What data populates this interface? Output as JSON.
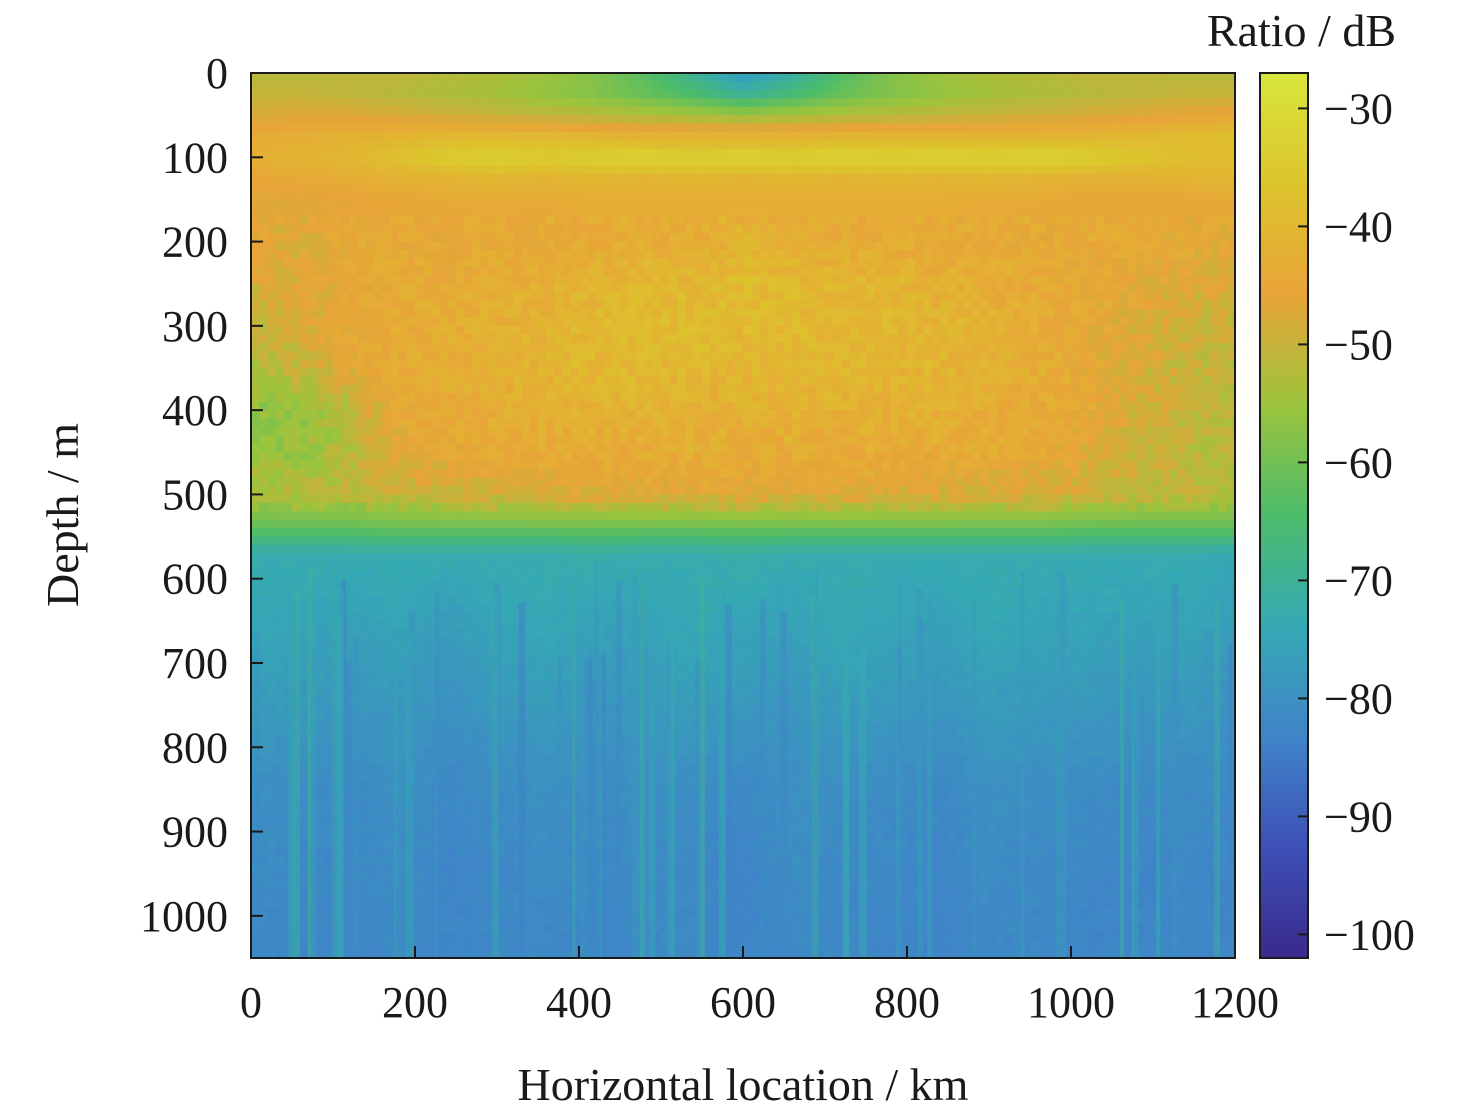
{
  "chart_data": {
    "type": "heatmap",
    "xlabel": "Horizontal location / km",
    "ylabel": "Depth / m",
    "colorbar_label": "Ratio / dB",
    "xlim": [
      0,
      1200
    ],
    "ylim": [
      0,
      1050
    ],
    "y_inverted": true,
    "x_ticks": [
      0,
      200,
      400,
      600,
      800,
      1000,
      1200
    ],
    "y_ticks": [
      0,
      100,
      200,
      300,
      400,
      500,
      600,
      700,
      800,
      900,
      1000
    ],
    "colorbar_range": [
      -102,
      -27
    ],
    "colorbar_ticks": [
      -30,
      -40,
      -50,
      -60,
      -70,
      -80,
      -90,
      -100
    ],
    "colormap": [
      "#3a2a8c",
      "#3d50b6",
      "#3f84c8",
      "#35a9b4",
      "#4cbc6a",
      "#9cc43c",
      "#e8a438",
      "#dcc42c",
      "#d8e63c"
    ],
    "x": [
      0,
      60,
      120,
      180,
      240,
      300,
      360,
      420,
      480,
      540,
      600,
      660,
      720,
      780,
      840,
      900,
      960,
      1020,
      1080,
      1140,
      1200
    ],
    "y": [
      0,
      25,
      50,
      75,
      100,
      125,
      150,
      200,
      250,
      300,
      350,
      400,
      450,
      500,
      540,
      570,
      650,
      750,
      850,
      950,
      1050
    ],
    "z": [
      [
        -52,
        -52,
        -51,
        -51,
        -52,
        -53,
        -55,
        -58,
        -63,
        -70,
        -78,
        -72,
        -64,
        -58,
        -55,
        -53,
        -52,
        -51,
        -51,
        -52,
        -52
      ],
      [
        -50,
        -50,
        -51,
        -52,
        -53,
        -54,
        -56,
        -58,
        -61,
        -65,
        -70,
        -66,
        -61,
        -58,
        -56,
        -54,
        -53,
        -52,
        -51,
        -50,
        -50
      ],
      [
        -48,
        -47,
        -47,
        -48,
        -49,
        -50,
        -51,
        -52,
        -53,
        -54,
        -55,
        -54,
        -53,
        -52,
        -51,
        -50,
        -49,
        -48,
        -47,
        -46,
        -45
      ],
      [
        -44,
        -43,
        -42,
        -41,
        -40,
        -40,
        -40,
        -41,
        -42,
        -42,
        -42,
        -42,
        -41,
        -41,
        -41,
        -41,
        -41,
        -41,
        -40,
        -39,
        -38
      ],
      [
        -42,
        -41,
        -40,
        -37,
        -34,
        -33,
        -34,
        -33,
        -32,
        -33,
        -32,
        -33,
        -32,
        -33,
        -32,
        -33,
        -32,
        -33,
        -36,
        -38,
        -39
      ],
      [
        -45,
        -44,
        -43,
        -42,
        -41,
        -40,
        -41,
        -40,
        -41,
        -40,
        -41,
        -40,
        -41,
        -40,
        -41,
        -40,
        -41,
        -42,
        -42,
        -41,
        -40
      ],
      [
        -47,
        -47,
        -46,
        -45,
        -44,
        -44,
        -44,
        -43,
        -43,
        -43,
        -43,
        -43,
        -43,
        -43,
        -43,
        -44,
        -44,
        -45,
        -45,
        -45,
        -44
      ],
      [
        -46,
        -47,
        -45,
        -44,
        -45,
        -44,
        -45,
        -44,
        -43,
        -44,
        -41,
        -43,
        -44,
        -44,
        -45,
        -44,
        -45,
        -44,
        -45,
        -45,
        -46
      ],
      [
        -48,
        -47,
        -45,
        -44,
        -44,
        -43,
        -42,
        -41,
        -40,
        -40,
        -39,
        -40,
        -40,
        -41,
        -42,
        -43,
        -44,
        -45,
        -46,
        -47,
        -48
      ],
      [
        -50,
        -48,
        -45,
        -44,
        -43,
        -42,
        -41,
        -40,
        -39,
        -39,
        -39,
        -40,
        -40,
        -40,
        -41,
        -42,
        -43,
        -45,
        -47,
        -49,
        -50
      ],
      [
        -53,
        -50,
        -46,
        -44,
        -43,
        -42,
        -41,
        -40,
        -40,
        -40,
        -41,
        -41,
        -40,
        -41,
        -41,
        -42,
        -43,
        -45,
        -48,
        -50,
        -51
      ],
      [
        -57,
        -56,
        -52,
        -45,
        -44,
        -43,
        -42,
        -42,
        -41,
        -42,
        -42,
        -42,
        -42,
        -42,
        -42,
        -43,
        -44,
        -45,
        -48,
        -50,
        -52
      ],
      [
        -56,
        -56,
        -52,
        -46,
        -45,
        -44,
        -44,
        -43,
        -44,
        -43,
        -44,
        -43,
        -44,
        -43,
        -44,
        -44,
        -45,
        -47,
        -49,
        -51,
        -52
      ],
      [
        -53,
        -52,
        -51,
        -50,
        -49,
        -48,
        -47,
        -47,
        -46,
        -47,
        -46,
        -47,
        -46,
        -47,
        -47,
        -48,
        -48,
        -49,
        -50,
        -51,
        -52
      ],
      [
        -62,
        -62,
        -62,
        -61,
        -61,
        -61,
        -61,
        -61,
        -61,
        -61,
        -61,
        -61,
        -61,
        -61,
        -61,
        -61,
        -61,
        -62,
        -62,
        -62,
        -62
      ],
      [
        -73,
        -73,
        -73,
        -73,
        -73,
        -73,
        -73,
        -72,
        -73,
        -73,
        -72,
        -73,
        -73,
        -73,
        -73,
        -73,
        -73,
        -73,
        -73,
        -73,
        -74
      ],
      [
        -74,
        -75,
        -76,
        -75,
        -77,
        -75,
        -74,
        -76,
        -75,
        -74,
        -75,
        -76,
        -74,
        -75,
        -76,
        -74,
        -75,
        -75,
        -76,
        -75,
        -77
      ],
      [
        -77,
        -78,
        -79,
        -78,
        -80,
        -78,
        -77,
        -79,
        -78,
        -77,
        -78,
        -79,
        -77,
        -78,
        -79,
        -77,
        -78,
        -78,
        -79,
        -78,
        -80
      ],
      [
        -80,
        -81,
        -82,
        -80,
        -82,
        -81,
        -80,
        -81,
        -80,
        -81,
        -82,
        -80,
        -81,
        -81,
        -82,
        -80,
        -81,
        -81,
        -82,
        -81,
        -82
      ],
      [
        -81,
        -82,
        -82,
        -81,
        -83,
        -82,
        -81,
        -82,
        -81,
        -82,
        -83,
        -81,
        -82,
        -82,
        -83,
        -81,
        -82,
        -82,
        -83,
        -82,
        -83
      ],
      [
        -82,
        -82,
        -83,
        -82,
        -83,
        -82,
        -82,
        -83,
        -82,
        -82,
        -83,
        -82,
        -82,
        -83,
        -83,
        -82,
        -82,
        -83,
        -83,
        -82,
        -83
      ]
    ]
  }
}
